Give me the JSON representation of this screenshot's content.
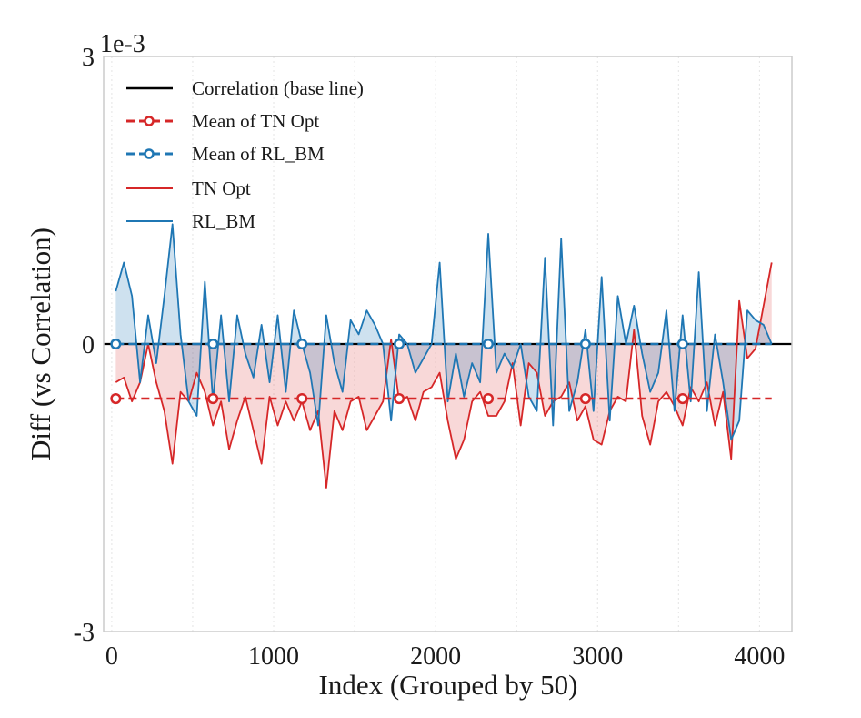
{
  "chart_data": {
    "type": "line",
    "title": "",
    "xlabel": "Index (Grouped by 50)",
    "ylabel": "Diff (vs Correlation)",
    "offset_text": "1e-3",
    "xlim": [
      -50,
      4200
    ],
    "ylim": [
      -3,
      3
    ],
    "xticks": [
      0,
      1000,
      2000,
      3000,
      4000
    ],
    "xtick_labels": [
      "0",
      "1000",
      "2000",
      "3000",
      "4000"
    ],
    "yticks": [
      3,
      0,
      -3
    ],
    "ytick_labels": [
      "3",
      "0",
      "-3"
    ],
    "grid": "vertical dotted",
    "legend_location": "top-left",
    "legend": [
      {
        "label": "Correlation (base line)",
        "style": "solid",
        "color": "#000000",
        "marker": false
      },
      {
        "label": "Mean of TN Opt",
        "style": "dashed",
        "color": "#d62728",
        "marker": true
      },
      {
        "label": "Mean of RL_BM",
        "style": "dashed",
        "color": "#1f77b4",
        "marker": true
      },
      {
        "label": "TN Opt",
        "style": "solid",
        "color": "#d62728",
        "marker": false
      },
      {
        "label": "RL_BM",
        "style": "solid",
        "color": "#1f77b4",
        "marker": false
      }
    ],
    "baseline": {
      "name": "Correlation (base line)",
      "y": 0,
      "color": "#000000"
    },
    "means": [
      {
        "name": "Mean of TN Opt",
        "y": -0.57,
        "color": "#d62728",
        "marker_x": [
          25,
          625,
          1175,
          1775,
          2325,
          2925,
          3525
        ]
      },
      {
        "name": "Mean of RL_BM",
        "y": 0.0,
        "color": "#1f77b4",
        "marker_x": [
          25,
          625,
          1175,
          1775,
          2325,
          2925,
          3525
        ]
      }
    ],
    "x": [
      25,
      75,
      125,
      175,
      225,
      275,
      325,
      375,
      425,
      475,
      525,
      575,
      625,
      675,
      725,
      775,
      825,
      875,
      925,
      975,
      1025,
      1075,
      1125,
      1175,
      1225,
      1275,
      1325,
      1375,
      1425,
      1475,
      1525,
      1575,
      1625,
      1675,
      1725,
      1775,
      1825,
      1875,
      1925,
      1975,
      2025,
      2075,
      2125,
      2175,
      2225,
      2275,
      2325,
      2375,
      2425,
      2475,
      2525,
      2575,
      2625,
      2675,
      2725,
      2775,
      2825,
      2875,
      2925,
      2975,
      3025,
      3075,
      3125,
      3175,
      3225,
      3275,
      3325,
      3375,
      3425,
      3475,
      3525,
      3575,
      3625,
      3675,
      3725,
      3775,
      3825,
      3875,
      3925,
      3975,
      4025,
      4075
    ],
    "series": [
      {
        "name": "TN Opt",
        "color": "#d62728",
        "values": [
          -0.4,
          -0.35,
          -0.6,
          -0.4,
          0.0,
          -0.4,
          -0.7,
          -1.25,
          -0.5,
          -0.6,
          -0.3,
          -0.5,
          -0.85,
          -0.6,
          -1.1,
          -0.8,
          -0.55,
          -0.9,
          -1.25,
          -0.55,
          -0.85,
          -0.6,
          -0.8,
          -0.6,
          -0.9,
          -0.7,
          -1.5,
          -0.7,
          -0.9,
          -0.6,
          -0.55,
          -0.9,
          -0.75,
          -0.6,
          0.05,
          -0.6,
          -0.55,
          -0.8,
          -0.5,
          -0.45,
          -0.3,
          -0.8,
          -1.2,
          -1.0,
          -0.6,
          -0.5,
          -0.75,
          -0.75,
          -0.6,
          -0.2,
          -0.85,
          -0.2,
          -0.3,
          -0.75,
          -0.6,
          -0.55,
          -0.4,
          -0.8,
          -0.65,
          -1.0,
          -1.05,
          -0.7,
          -0.55,
          -0.6,
          0.15,
          -0.75,
          -1.05,
          -0.6,
          -0.5,
          -0.65,
          -0.85,
          -0.45,
          -0.6,
          -0.4,
          -0.85,
          -0.5,
          -1.2,
          0.45,
          -0.15,
          -0.05,
          0.4,
          0.85
        ]
      },
      {
        "name": "RL_BM",
        "color": "#1f77b4",
        "values": [
          0.55,
          0.85,
          0.5,
          -0.4,
          0.3,
          -0.2,
          0.5,
          1.25,
          0.1,
          -0.6,
          -0.75,
          0.65,
          -0.6,
          0.3,
          -0.6,
          0.3,
          -0.1,
          -0.35,
          0.2,
          -0.4,
          0.3,
          -0.5,
          0.35,
          0.0,
          -0.3,
          -0.85,
          0.3,
          -0.2,
          -0.5,
          0.25,
          0.1,
          0.35,
          0.2,
          0.0,
          -0.8,
          0.1,
          0.0,
          -0.3,
          -0.15,
          0.0,
          0.85,
          -0.6,
          -0.1,
          -0.55,
          -0.2,
          -0.4,
          1.15,
          -0.3,
          -0.1,
          -0.25,
          0.0,
          -0.55,
          -0.7,
          0.9,
          -0.85,
          1.1,
          -0.7,
          -0.4,
          0.15,
          -0.7,
          0.7,
          -0.8,
          0.5,
          0.0,
          0.4,
          -0.1,
          -0.5,
          -0.3,
          0.35,
          -0.7,
          0.3,
          -0.6,
          0.75,
          -0.7,
          0.1,
          -0.4,
          -1.0,
          -0.8,
          0.35,
          0.25,
          0.2,
          0.0
        ]
      }
    ]
  }
}
